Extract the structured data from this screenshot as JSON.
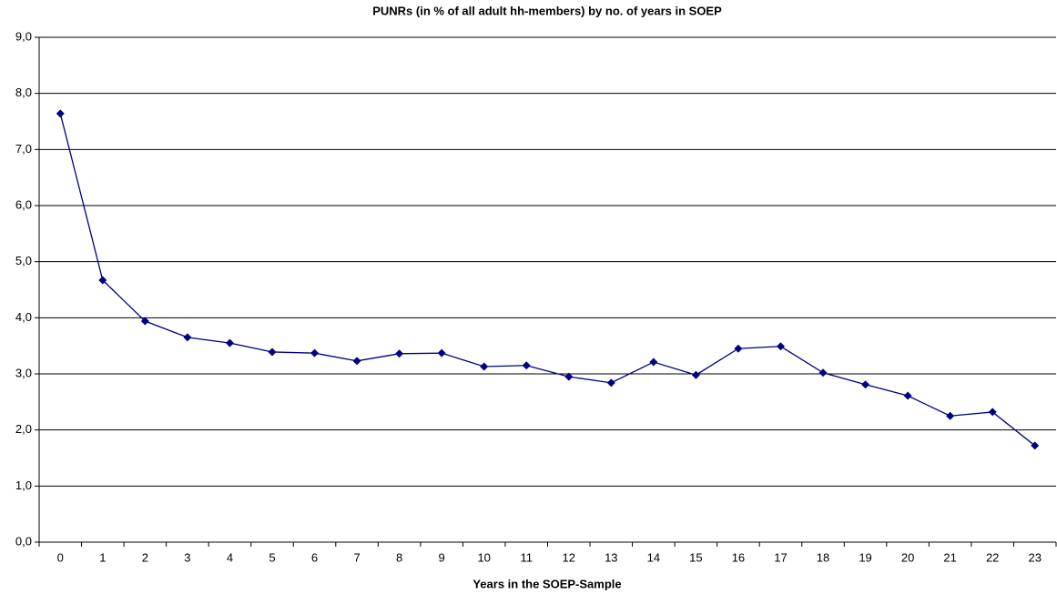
{
  "chart_data": {
    "type": "line",
    "title": "PUNRs (in % of all adult hh-members) by no. of years in SOEP",
    "x_label": "Years in the SOEP-Sample",
    "categories": [
      "0",
      "1",
      "2",
      "3",
      "4",
      "5",
      "6",
      "7",
      "8",
      "9",
      "10",
      "11",
      "12",
      "13",
      "14",
      "15",
      "16",
      "17",
      "18",
      "19",
      "20",
      "21",
      "22",
      "23"
    ],
    "series": [
      {
        "name": "PUNRs",
        "color": "#000080",
        "values": [
          7.64,
          4.67,
          3.94,
          3.65,
          3.55,
          3.39,
          3.37,
          3.23,
          3.36,
          3.37,
          3.13,
          3.15,
          2.95,
          2.84,
          3.21,
          2.98,
          3.45,
          3.49,
          3.02,
          2.81,
          2.61,
          2.25,
          2.32,
          1.72
        ]
      }
    ],
    "ylim": [
      0,
      9
    ],
    "yticks": [
      {
        "value": 0,
        "label": "0,0"
      },
      {
        "value": 1,
        "label": "1,0"
      },
      {
        "value": 2,
        "label": "2,0"
      },
      {
        "value": 3,
        "label": "3,0"
      },
      {
        "value": 4,
        "label": "4,0"
      },
      {
        "value": 5,
        "label": "5,0"
      },
      {
        "value": 6,
        "label": "6,0"
      },
      {
        "value": 7,
        "label": "7,0"
      },
      {
        "value": 8,
        "label": "8,0"
      },
      {
        "value": 9,
        "label": "9,0"
      }
    ],
    "grid": true
  }
}
